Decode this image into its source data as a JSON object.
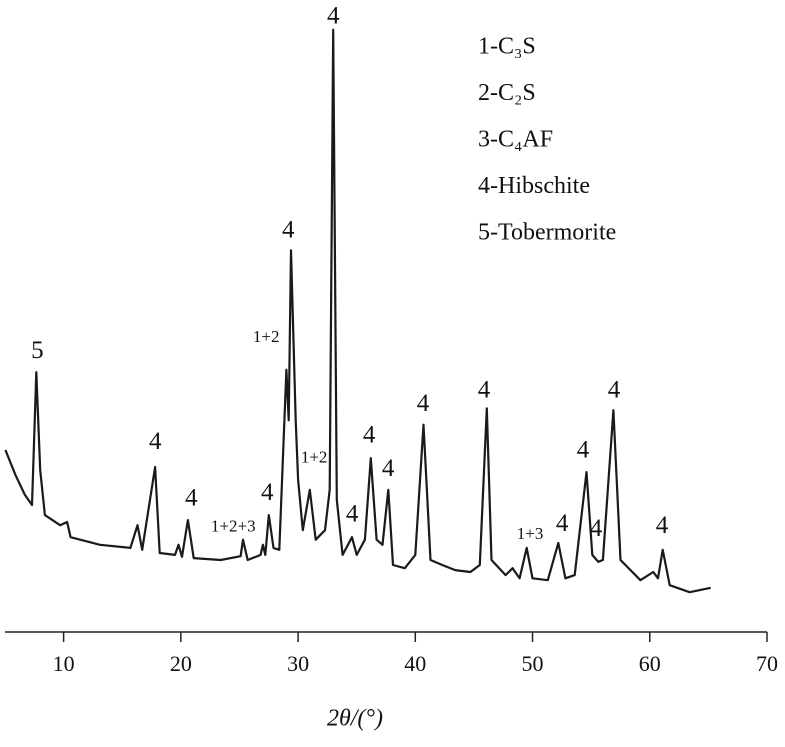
{
  "chart_data": {
    "type": "line",
    "x_label": "2θ/(°)",
    "legend_items": [
      "1-C₃S",
      "2-C₂S",
      "3-C₄AF",
      "4-Hibschite",
      "5-Tobermorite"
    ],
    "xlim": [
      5,
      70
    ],
    "xticks": [
      10,
      20,
      30,
      40,
      50,
      60,
      70
    ],
    "ylim": [
      0,
      100
    ],
    "series": [
      {
        "color": "#1a1a1a",
        "x": [
          5.03,
          5.9,
          6.7,
          7.3,
          7.67,
          8.0,
          8.4,
          9.7,
          10.3,
          10.6,
          13.1,
          15.7,
          16.3,
          16.7,
          17.8,
          18.2,
          19.5,
          19.8,
          20.1,
          20.6,
          21.1,
          23.4,
          25.1,
          25.3,
          25.7,
          26.8,
          27.0,
          27.2,
          27.5,
          27.9,
          28.4,
          29.0,
          29.2,
          29.4,
          29.8,
          30.0,
          30.4,
          31.0,
          31.5,
          32.3,
          32.7,
          33.0,
          33.3,
          33.8,
          34.6,
          35.0,
          35.7,
          36.2,
          36.7,
          37.2,
          37.7,
          38.1,
          39.1,
          40.0,
          40.7,
          41.3,
          42.3,
          43.4,
          44.7,
          45.5,
          46.1,
          46.5,
          47.7,
          48.3,
          48.9,
          49.5,
          50.0,
          51.3,
          52.2,
          52.8,
          53.6,
          54.6,
          55.1,
          55.6,
          56.0,
          56.9,
          57.5,
          59.2,
          60.3,
          60.7,
          61.1,
          61.7,
          63.4,
          65.2
        ],
        "values": [
          28.8,
          24.8,
          21.7,
          20.1,
          41.1,
          25.6,
          18.5,
          16.9,
          17.4,
          15.0,
          13.8,
          13.3,
          16.9,
          13.0,
          26.1,
          12.5,
          12.2,
          13.8,
          11.9,
          17.7,
          11.7,
          11.4,
          12.0,
          14.6,
          11.4,
          12.2,
          13.8,
          12.2,
          18.5,
          13.3,
          13.0,
          41.5,
          33.5,
          60.4,
          33.5,
          24.1,
          16.1,
          22.5,
          14.6,
          16.1,
          22.5,
          95.3,
          20.9,
          12.2,
          15.0,
          12.2,
          14.6,
          27.5,
          14.6,
          13.8,
          22.5,
          10.6,
          10.1,
          12.2,
          32.8,
          11.4,
          10.6,
          9.8,
          9.5,
          10.6,
          35.4,
          11.4,
          9.0,
          10.1,
          8.5,
          13.3,
          8.5,
          8.2,
          14.1,
          8.5,
          9.0,
          25.3,
          12.2,
          11.1,
          11.4,
          35.1,
          11.4,
          8.2,
          9.5,
          8.5,
          13.0,
          7.4,
          6.3,
          7.0
        ]
      }
    ],
    "annotations": [
      {
        "text": "4",
        "x": 33.0,
        "y": 97.2
      },
      {
        "text": "5",
        "x": 7.76,
        "y": 44.3
      },
      {
        "text": "4",
        "x": 17.82,
        "y": 29.9
      },
      {
        "text": "4",
        "x": 20.89,
        "y": 20.9
      },
      {
        "text": "1+2+3",
        "x": 24.47,
        "y": 16.5
      },
      {
        "text": "4",
        "x": 27.37,
        "y": 21.8
      },
      {
        "text": "1+2",
        "x": 27.28,
        "y": 46.5
      },
      {
        "text": "4",
        "x": 29.16,
        "y": 63.3
      },
      {
        "text": "1+2",
        "x": 31.37,
        "y": 27.4
      },
      {
        "text": "4",
        "x": 34.61,
        "y": 18.4
      },
      {
        "text": "4",
        "x": 36.06,
        "y": 30.9
      },
      {
        "text": "4",
        "x": 37.68,
        "y": 25.6
      },
      {
        "text": "4",
        "x": 40.66,
        "y": 35.9
      },
      {
        "text": "4",
        "x": 45.86,
        "y": 38.0
      },
      {
        "text": "1+3",
        "x": 49.79,
        "y": 15.3
      },
      {
        "text": "4",
        "x": 52.52,
        "y": 16.9
      },
      {
        "text": "4",
        "x": 55.41,
        "y": 16.1
      },
      {
        "text": "4",
        "x": 54.3,
        "y": 28.5
      },
      {
        "text": "4",
        "x": 56.95,
        "y": 38.0
      },
      {
        "text": "4",
        "x": 61.04,
        "y": 16.6
      }
    ]
  }
}
